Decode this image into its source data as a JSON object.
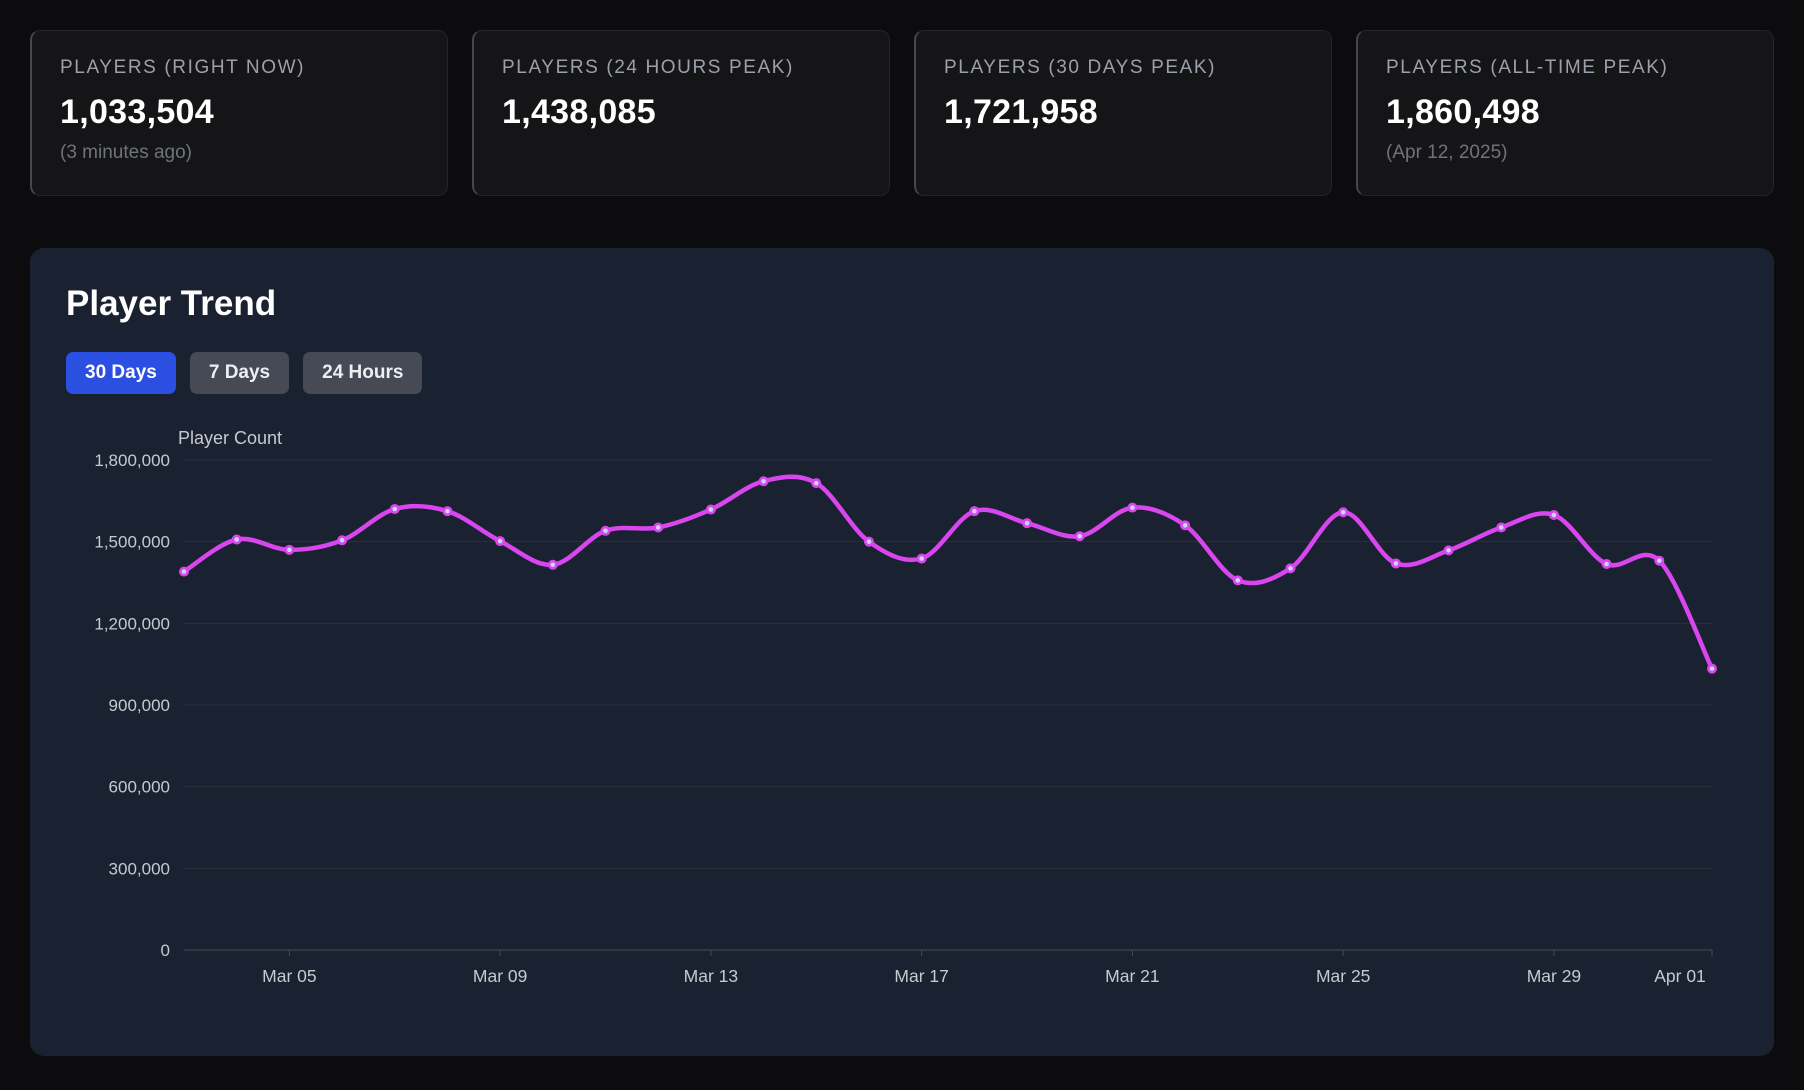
{
  "stats": [
    {
      "label": "PLAYERS (RIGHT NOW)",
      "value": "1,033,504",
      "note": "(3 minutes ago)"
    },
    {
      "label": "PLAYERS (24 HOURS PEAK)",
      "value": "1,438,085",
      "note": ""
    },
    {
      "label": "PLAYERS (30 DAYS PEAK)",
      "value": "1,721,958",
      "note": ""
    },
    {
      "label": "PLAYERS (ALL-TIME PEAK)",
      "value": "1,860,498",
      "note": "(Apr 12, 2025)"
    }
  ],
  "trend": {
    "title": "Player Trend",
    "tabs": [
      {
        "label": "30 Days",
        "active": true
      },
      {
        "label": "7 Days",
        "active": false
      },
      {
        "label": "24 Hours",
        "active": false
      }
    ]
  },
  "colors": {
    "accent": "#2b4fe0",
    "line": "#d946ef",
    "point_center": "#c8d8ff",
    "panel_bg": "#1a2130",
    "card_bg": "#151517",
    "page_bg": "#0c0c0e"
  },
  "chart_data": {
    "type": "line",
    "title": "Player Trend",
    "xlabel": "",
    "ylabel": "Player Count",
    "x": [
      "Mar 03",
      "Mar 04",
      "Mar 05",
      "Mar 06",
      "Mar 07",
      "Mar 08",
      "Mar 09",
      "Mar 10",
      "Mar 11",
      "Mar 12",
      "Mar 13",
      "Mar 14",
      "Mar 15",
      "Mar 16",
      "Mar 17",
      "Mar 18",
      "Mar 19",
      "Mar 20",
      "Mar 21",
      "Mar 22",
      "Mar 23",
      "Mar 24",
      "Mar 25",
      "Mar 26",
      "Mar 27",
      "Mar 28",
      "Mar 29",
      "Mar 30",
      "Mar 31",
      "Apr 01"
    ],
    "values": [
      1390000,
      1508000,
      1470000,
      1505000,
      1620000,
      1612000,
      1502000,
      1415000,
      1540000,
      1552000,
      1618000,
      1721958,
      1715000,
      1500000,
      1438000,
      1612000,
      1568000,
      1520000,
      1625000,
      1560000,
      1358000,
      1402000,
      1608000,
      1420000,
      1468000,
      1552000,
      1598000,
      1418000,
      1430000,
      1033504
    ],
    "x_tick_labels": [
      "Mar 05",
      "Mar 09",
      "Mar 13",
      "Mar 17",
      "Mar 21",
      "Mar 25",
      "Mar 29",
      "Apr 01"
    ],
    "y_ticks": [
      0,
      300000,
      600000,
      900000,
      1200000,
      1500000,
      1800000
    ],
    "ylim": [
      0,
      1800000
    ],
    "grid": true,
    "legend": "none",
    "line_color": "#d946ef",
    "point_center_color": "#c8d8ff"
  }
}
